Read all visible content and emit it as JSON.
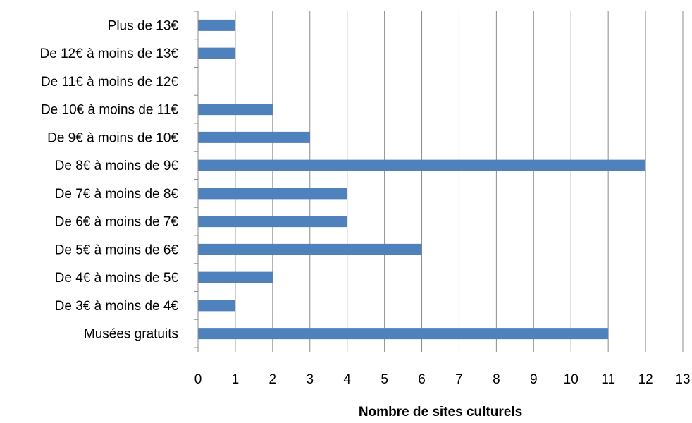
{
  "chart_data": {
    "type": "bar",
    "orientation": "horizontal",
    "categories": [
      "Musées gratuits",
      "De 3€ à moins de 4€",
      "De 4€ à moins de 5€",
      "De 5€ à moins de 6€",
      "De 6€ à moins de 7€",
      "De 7€ à moins de 8€",
      "De 8€ à moins de 9€",
      "De 9€ à moins de 10€",
      "De 10€ à moins de 11€",
      "De 11€ à moins de 12€",
      "De 12€ à moins de 13€",
      "Plus de 13€"
    ],
    "values": [
      11,
      1,
      2,
      6,
      4,
      4,
      12,
      3,
      2,
      0,
      1,
      1
    ],
    "title": "",
    "xlabel": "Nombre de sites culturels",
    "ylabel": "",
    "xlim": [
      0,
      13
    ],
    "xticks": [
      "0",
      "1",
      "2",
      "3",
      "4",
      "5",
      "6",
      "7",
      "8",
      "9",
      "10",
      "11",
      "12",
      "13"
    ],
    "grid": "vertical",
    "legend": "none",
    "colors": {
      "bar": "#4f81bd",
      "grid": "#8c8c8c",
      "axis": "#8c8c8c",
      "text": "#000000"
    }
  }
}
